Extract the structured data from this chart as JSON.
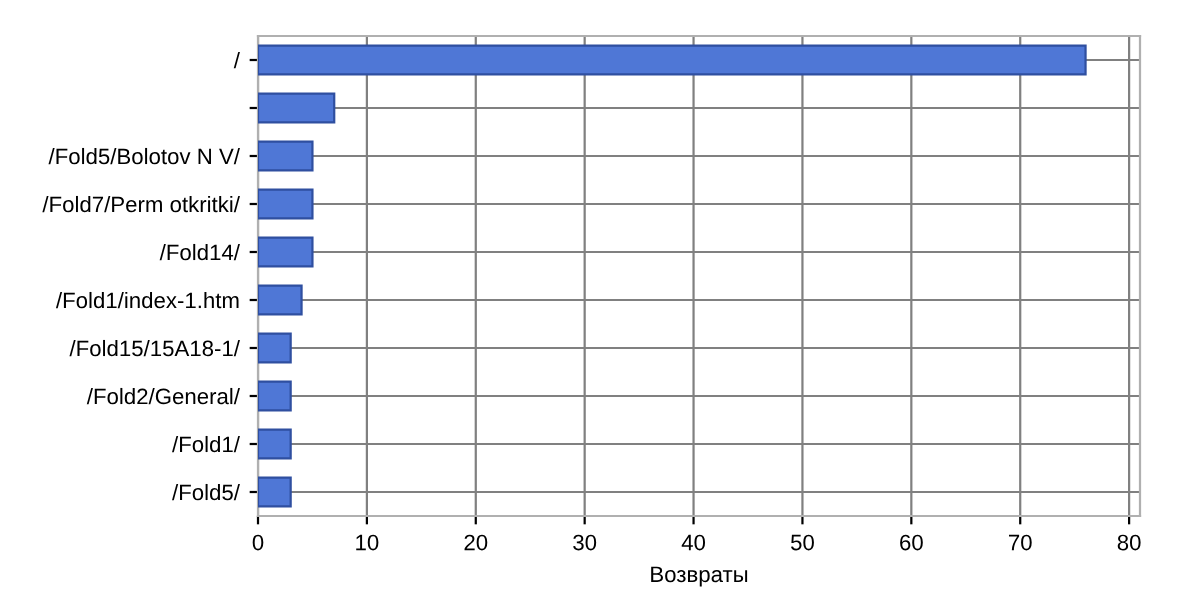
{
  "chart_data": {
    "type": "bar",
    "orientation": "horizontal",
    "xlabel": "Возвраты",
    "categories": [
      "/",
      null,
      "/Fold5/Bolotov N V/",
      "/Fold7/Perm otkritki/",
      "/Fold14/",
      "/Fold1/index-1.htm",
      "/Fold15/15A18-1/",
      "/Fold2/General/",
      "/Fold1/",
      "/Fold5/"
    ],
    "values": [
      76,
      7,
      5,
      5,
      5,
      4,
      3,
      3,
      3,
      3
    ],
    "color": "#4f77d6",
    "xlim": [
      0,
      81
    ],
    "xticks": [
      0,
      10,
      20,
      30,
      40,
      50,
      60,
      70,
      80
    ],
    "grid": true
  }
}
